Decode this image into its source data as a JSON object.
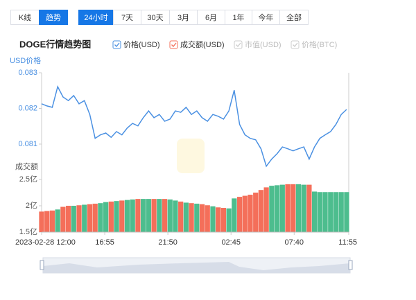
{
  "toolbar": {
    "views": [
      "K线",
      "趋势"
    ],
    "active_view": 1,
    "ranges": [
      "24小时",
      "7天",
      "30天",
      "3月",
      "6月",
      "1年",
      "今年",
      "全部"
    ],
    "active_range": 0
  },
  "chart_data": {
    "type": "line",
    "title": "DOGE行情趋势图",
    "y_label": "USD价格",
    "y2_label": "成交额",
    "inactive_legend": [
      {
        "name": "市值(USD)"
      },
      {
        "name": "价格(BTC)"
      }
    ],
    "x": [
      "2023-02-28 12:00",
      "2023-02-28 12:25",
      "2023-02-28 12:50",
      "2023-02-28 13:15",
      "2023-02-28 13:40",
      "2023-02-28 14:05",
      "2023-02-28 14:30",
      "2023-02-28 14:55",
      "2023-02-28 15:20",
      "2023-02-28 15:45",
      "2023-02-28 16:10",
      "2023-02-28 16:35",
      "2023-02-28 17:00",
      "2023-02-28 17:25",
      "2023-02-28 17:50",
      "2023-02-28 18:15",
      "2023-02-28 18:40",
      "2023-02-28 19:05",
      "2023-02-28 19:30",
      "2023-02-28 19:55",
      "2023-02-28 20:20",
      "2023-02-28 20:45",
      "2023-02-28 21:10",
      "2023-02-28 21:35",
      "2023-02-28 22:00",
      "2023-02-28 22:25",
      "2023-02-28 22:50",
      "2023-02-28 23:15",
      "2023-02-28 23:40",
      "2023-03-01 00:05",
      "2023-03-01 00:30",
      "2023-03-01 00:55",
      "2023-03-01 01:20",
      "2023-03-01 01:45",
      "2023-03-01 02:10",
      "2023-03-01 02:35",
      "2023-03-01 03:00",
      "2023-03-01 03:25",
      "2023-03-01 03:50",
      "2023-03-01 04:15",
      "2023-03-01 04:40",
      "2023-03-01 05:05",
      "2023-03-01 05:30",
      "2023-03-01 05:55",
      "2023-03-01 06:20",
      "2023-03-01 06:45",
      "2023-03-01 07:10",
      "2023-03-01 07:35",
      "2023-03-01 08:00",
      "2023-03-01 08:25",
      "2023-03-01 08:50",
      "2023-03-01 09:15",
      "2023-03-01 09:40",
      "2023-03-01 10:05",
      "2023-03-01 10:30",
      "2023-03-01 10:55",
      "2023-03-01 11:20",
      "2023-03-01 11:45"
    ],
    "series": [
      {
        "name": "价格(USD)",
        "color": "#4a90e2",
        "values": [
          0.08213,
          0.08207,
          0.08203,
          0.08261,
          0.08232,
          0.08222,
          0.08236,
          0.08213,
          0.08222,
          0.08183,
          0.08116,
          0.08126,
          0.08131,
          0.08119,
          0.08135,
          0.08126,
          0.08145,
          0.08158,
          0.08151,
          0.08174,
          0.08193,
          0.08174,
          0.08183,
          0.08164,
          0.0817,
          0.08193,
          0.08189,
          0.08203,
          0.08183,
          0.08193,
          0.08174,
          0.08164,
          0.08183,
          0.08178,
          0.0817,
          0.08193,
          0.08251,
          0.08155,
          0.08126,
          0.08116,
          0.08112,
          0.08087,
          0.08038,
          0.08058,
          0.08073,
          0.08092,
          0.08087,
          0.08081,
          0.08087,
          0.08092,
          0.08058,
          0.08092,
          0.08116,
          0.08126,
          0.08135,
          0.08155,
          0.08183,
          0.08197
        ]
      },
      {
        "name": "成交额(USD)",
        "type": "bar",
        "axis": "y2",
        "color": "#f46f5a",
        "up_color": "#4dbd8e",
        "down_color": "#f46f5a",
        "values": [
          1.89,
          1.9,
          1.91,
          1.93,
          1.98,
          2.0,
          2.0,
          2.01,
          2.02,
          2.03,
          2.04,
          2.05,
          2.07,
          2.08,
          2.09,
          2.1,
          2.11,
          2.12,
          2.13,
          2.13,
          2.13,
          2.13,
          2.13,
          2.13,
          2.12,
          2.1,
          2.08,
          2.06,
          2.05,
          2.04,
          2.03,
          2.01,
          1.99,
          1.97,
          1.96,
          1.95,
          2.14,
          2.17,
          2.19,
          2.21,
          2.25,
          2.3,
          2.35,
          2.38,
          2.39,
          2.4,
          2.41,
          2.41,
          2.41,
          2.4,
          2.4,
          2.27,
          2.26,
          2.26,
          2.26,
          2.26,
          2.26,
          2.26
        ]
      }
    ],
    "xlim": [
      "2023-02-28 12:00",
      "2023-03-01 11:55"
    ],
    "xticks": [
      {
        "value": "2023-02-28 12:00",
        "label": "2023-02-28 12:00"
      },
      {
        "value": "2023-02-28 16:55",
        "label": "16:55"
      },
      {
        "value": "2023-02-28 21:50",
        "label": "21:50"
      },
      {
        "value": "2023-03-01 02:45",
        "label": "02:45"
      },
      {
        "value": "2023-03-01 07:40",
        "label": "07:40"
      },
      {
        "value": "2023-03-01 11:55",
        "label": "11:55"
      }
    ],
    "ylim": [
      0.0803,
      0.083
    ],
    "yticks": [
      0.083,
      0.082,
      0.081
    ],
    "y2lim": [
      1.5,
      2.5
    ],
    "y2ticks": [
      {
        "value": 2.5,
        "label": "2.5亿"
      },
      {
        "value": 2,
        "label": "2亿"
      },
      {
        "value": 1.5,
        "label": "1.5亿"
      }
    ]
  }
}
